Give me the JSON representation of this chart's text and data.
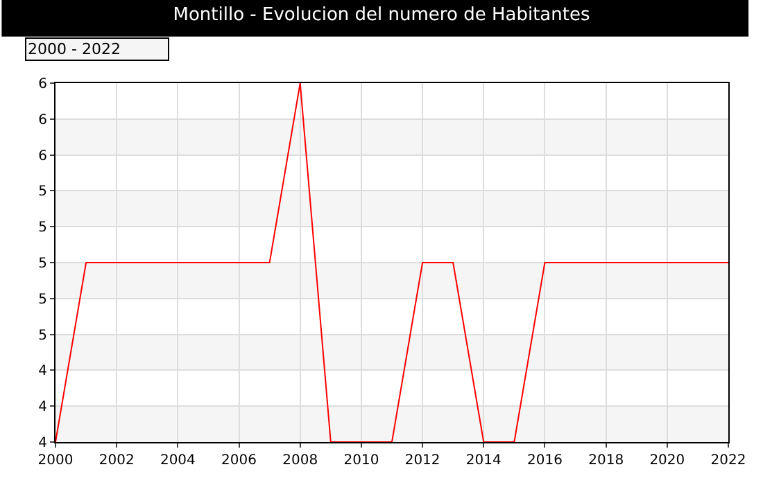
{
  "chart_data": {
    "type": "line",
    "title": "Montillo - Evolucion del numero de Habitantes",
    "annotations": [
      "2000 - 2022"
    ],
    "x": [
      2000,
      2001,
      2002,
      2003,
      2004,
      2005,
      2006,
      2007,
      2008,
      2009,
      2010,
      2011,
      2012,
      2013,
      2014,
      2015,
      2016,
      2017,
      2018,
      2019,
      2020,
      2021,
      2022
    ],
    "series": [
      {
        "color": "#ff0000",
        "values": [
          4,
          5,
          5,
          5,
          5,
          5,
          5,
          5,
          6,
          4,
          4,
          4,
          5,
          5,
          4,
          4,
          5,
          5,
          5,
          5,
          5,
          5,
          5
        ]
      }
    ],
    "xlim": [
      2000,
      2022
    ],
    "xticks": [
      2000,
      2002,
      2004,
      2006,
      2008,
      2010,
      2012,
      2014,
      2016,
      2018,
      2020,
      2022
    ],
    "ylim": [
      4,
      6
    ],
    "yticks": [
      4,
      {
        "value": 4.2,
        "label": "4"
      },
      {
        "value": 4.4,
        "label": "4"
      },
      {
        "value": 4.6,
        "label": "5"
      },
      {
        "value": 4.8,
        "label": "5"
      },
      5,
      {
        "value": 5.2,
        "label": "5"
      },
      {
        "value": 5.4,
        "label": "5"
      },
      {
        "value": 5.6,
        "label": "6"
      },
      {
        "value": 5.8,
        "label": "6"
      },
      6
    ],
    "bands": [
      {
        "axis": "y",
        "from": 4,
        "to": 4.2,
        "color": "#f5f5f5"
      },
      {
        "axis": "y",
        "from": 4.4,
        "to": 4.6,
        "color": "#f5f5f5"
      },
      {
        "axis": "y",
        "from": 4.8,
        "to": 5,
        "color": "#f5f5f5"
      },
      {
        "axis": "y",
        "from": 5.2,
        "to": 5.4,
        "color": "#f5f5f5"
      },
      {
        "axis": "y",
        "from": 5.6,
        "to": 5.8,
        "color": "#f5f5f5"
      }
    ],
    "grid": true,
    "legend": false,
    "marker": "none",
    "line_style": "solid"
  }
}
